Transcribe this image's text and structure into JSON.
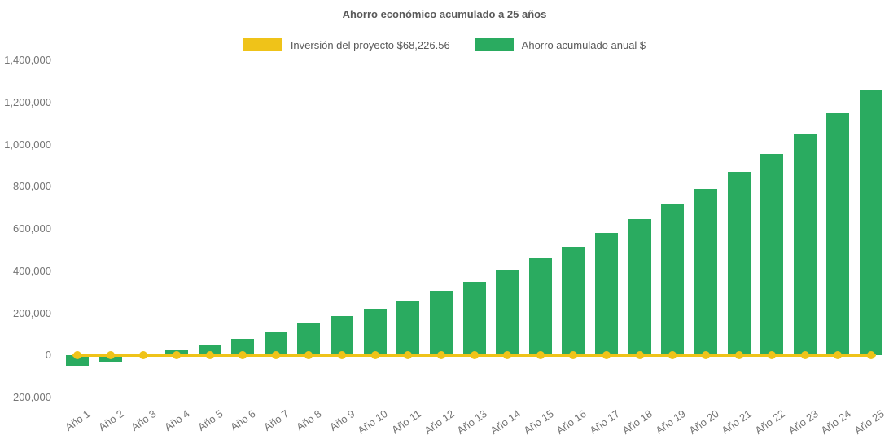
{
  "chart_data": {
    "type": "bar",
    "title": "Ahorro económico acumulado a 25 años",
    "categories": [
      "Año 1",
      "Año 2",
      "Año 3",
      "Año 4",
      "Año 5",
      "Año 6",
      "Año 7",
      "Año 8",
      "Año 9",
      "Año 10",
      "Año 11",
      "Año 12",
      "Año 13",
      "Año 14",
      "Año 15",
      "Año 16",
      "Año 17",
      "Año 18",
      "Año 19",
      "Año 20",
      "Año 21",
      "Año 22",
      "Año 23",
      "Año 24",
      "Año 25"
    ],
    "series": [
      {
        "name": "Inversión del proyecto $68,226.56",
        "type": "line",
        "color": "#efc319",
        "investment_value": 68226.56,
        "plotted_at": 0
      },
      {
        "name": "Ahorro acumulado anual $",
        "type": "bar",
        "color": "#2aab60",
        "values": [
          -50000,
          -30000,
          5000,
          25000,
          50000,
          80000,
          110000,
          150000,
          185000,
          220000,
          260000,
          305000,
          350000,
          405000,
          460000,
          515000,
          580000,
          645000,
          715000,
          790000,
          870000,
          955000,
          1050000,
          1150000,
          1260000
        ]
      }
    ],
    "ylim": [
      -200000,
      1400000
    ],
    "y_ticks": [
      "1,400,000",
      "1,200,000",
      "1,000,000",
      "800,000",
      "600,000",
      "400,000",
      "200,000",
      "0",
      "-200,000"
    ],
    "y_tick_values": [
      1400000,
      1200000,
      1000000,
      800000,
      600000,
      400000,
      200000,
      0,
      -200000
    ],
    "xlabel": "",
    "ylabel": "",
    "grid": false,
    "legend_position": "top",
    "title_color": "#595959",
    "axis_text_color": "#747474",
    "background": "#ffffff"
  }
}
